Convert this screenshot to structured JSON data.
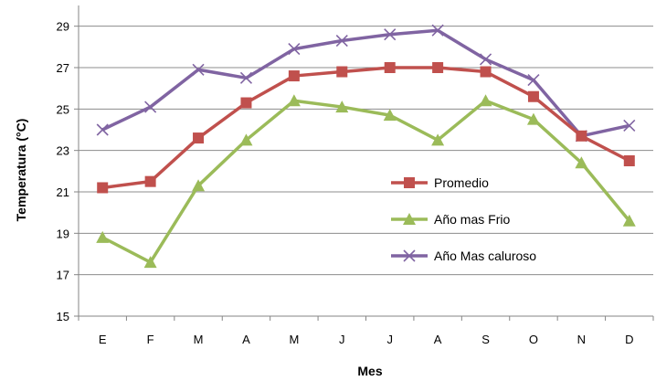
{
  "chart_data": {
    "type": "line",
    "categories": [
      "E",
      "F",
      "M",
      "A",
      "M",
      "J",
      "J",
      "A",
      "S",
      "O",
      "N",
      "D"
    ],
    "series": [
      {
        "name": "Promedio",
        "marker": "square",
        "color": "#C0504D",
        "values": [
          21.2,
          21.5,
          23.6,
          25.3,
          26.6,
          26.8,
          27.0,
          27.0,
          26.8,
          25.6,
          23.7,
          22.5
        ]
      },
      {
        "name": "Año mas Frio",
        "marker": "triangle",
        "color": "#9BBB59",
        "values": [
          18.8,
          17.6,
          21.3,
          23.5,
          25.4,
          25.1,
          24.7,
          23.5,
          25.4,
          24.5,
          22.4,
          19.6
        ]
      },
      {
        "name": "Año Mas caluroso",
        "marker": "x",
        "color": "#8064A2",
        "values": [
          24.0,
          25.1,
          26.9,
          26.5,
          27.9,
          28.3,
          28.6,
          28.8,
          27.4,
          26.4,
          23.7,
          24.2
        ]
      }
    ],
    "yticks": [
      "15",
      "17",
      "19",
      "21",
      "23",
      "25",
      "27",
      "29"
    ],
    "ylim": [
      15,
      30
    ],
    "xlabel": "Mes",
    "ylabel": "Temperatura (°C)",
    "grid": "horizontal",
    "legend_position": "center-right"
  }
}
